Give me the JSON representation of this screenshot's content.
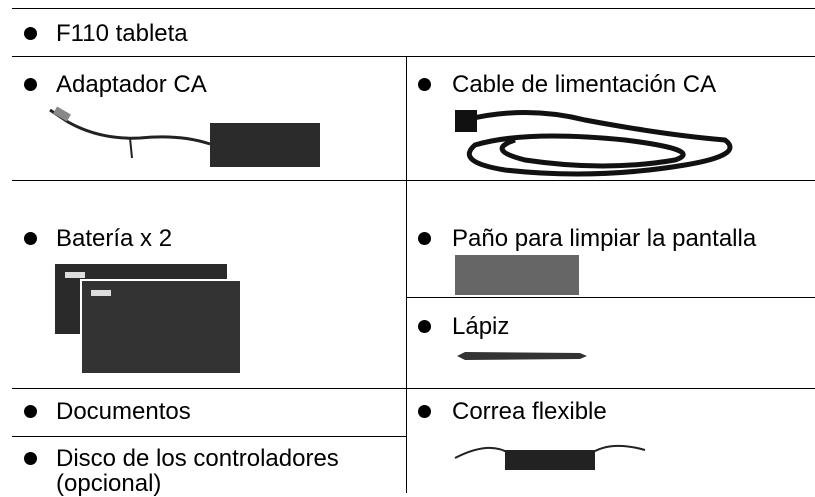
{
  "items": [
    "F110 tableta",
    "Adaptador CA",
    "Cable de limentación CA",
    "Batería x 2",
    "Paño para limpiar la pantalla",
    "Lápiz",
    "Documentos",
    "Correa flexible",
    "Disco de los controladores (opcional)"
  ]
}
